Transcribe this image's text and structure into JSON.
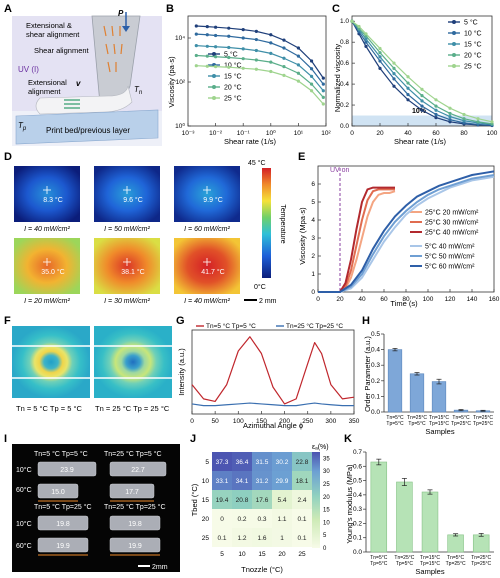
{
  "panel_letters": [
    "A",
    "B",
    "C",
    "D",
    "E",
    "F",
    "G",
    "H",
    "I",
    "J",
    "K"
  ],
  "panel_a": {
    "labels": {
      "P": "P",
      "ext_shear": "Extensional &",
      "ext_shear2": "shear alignment",
      "shear": "Shear alignment",
      "uv": "UV (I)",
      "v": "v",
      "ext": "Extensional",
      "ext2": "alignment",
      "tn": "T",
      "tn_sub": "n",
      "tp": "T",
      "tp_sub": "p",
      "bed": "Print bed/previous layer"
    }
  },
  "chart_data": [
    {
      "id": "B",
      "type": "line",
      "xlabel": "Shear rate (1/s)",
      "ylabel": "Viscosity (pa·s)",
      "xscale": "log",
      "yscale": "log",
      "xlim": [
        0.001,
        100
      ],
      "ylim": [
        1,
        100000
      ],
      "xticks": [
        "10⁻³",
        "10⁻²",
        "10⁻¹",
        "10⁰",
        "10¹",
        "10²"
      ],
      "yticks": [
        "10⁰",
        "10²",
        "10⁴"
      ],
      "series": [
        {
          "name": "5 °C",
          "color": "#1f3f7a",
          "x": [
            0.002,
            0.005,
            0.01,
            0.03,
            0.1,
            0.3,
            1,
            3,
            10,
            30,
            80
          ],
          "y": [
            35000,
            33000,
            31000,
            28000,
            24000,
            20000,
            14000,
            8000,
            3500,
            900,
            150
          ]
        },
        {
          "name": "10 °C",
          "color": "#2f6a9e",
          "x": [
            0.002,
            0.005,
            0.01,
            0.03,
            0.1,
            0.3,
            1,
            3,
            10,
            30,
            80
          ],
          "y": [
            15000,
            14000,
            13000,
            12000,
            10000,
            8500,
            6000,
            3500,
            1500,
            400,
            80
          ]
        },
        {
          "name": "15 °C",
          "color": "#3f8fa8",
          "x": [
            0.002,
            0.005,
            0.01,
            0.03,
            0.1,
            0.3,
            1,
            3,
            10,
            30,
            80
          ],
          "y": [
            4500,
            4200,
            4000,
            3700,
            3200,
            2700,
            2000,
            1200,
            600,
            180,
            40
          ]
        },
        {
          "name": "20 °C",
          "color": "#5aae8a",
          "x": [
            0.002,
            0.005,
            0.01,
            0.03,
            0.1,
            0.3,
            1,
            3,
            10,
            30,
            80
          ],
          "y": [
            1600,
            1500,
            1400,
            1300,
            1150,
            1000,
            800,
            500,
            250,
            80,
            20
          ]
        },
        {
          "name": "25 °C",
          "color": "#9fd48e",
          "x": [
            0.002,
            0.005,
            0.01,
            0.03,
            0.1,
            0.3,
            1,
            3,
            10,
            30,
            80
          ],
          "y": [
            550,
            520,
            500,
            470,
            420,
            380,
            300,
            200,
            110,
            40,
            10
          ]
        }
      ]
    },
    {
      "id": "C",
      "type": "line",
      "xlabel": "Shear rate (1/s)",
      "ylabel": "Normalized viscosity",
      "xlim": [
        0,
        100
      ],
      "ylim": [
        0,
        1.05
      ],
      "xticks": [
        0,
        20,
        40,
        60,
        80,
        100
      ],
      "yticks": [
        0.0,
        0.2,
        0.4,
        0.6,
        0.8,
        1.0
      ],
      "band_label": "10%",
      "series": [
        {
          "name": "5 °C",
          "color": "#1f3f7a",
          "x": [
            0,
            5,
            10,
            20,
            30,
            40,
            50,
            60,
            70,
            80,
            90,
            100
          ],
          "y": [
            1.0,
            0.88,
            0.76,
            0.55,
            0.38,
            0.25,
            0.15,
            0.08,
            0.04,
            0.02,
            0.01,
            0.005
          ]
        },
        {
          "name": "10 °C",
          "color": "#2f6a9e",
          "x": [
            0,
            5,
            10,
            20,
            30,
            40,
            50,
            60,
            70,
            80,
            90,
            100
          ],
          "y": [
            1.0,
            0.9,
            0.8,
            0.62,
            0.45,
            0.3,
            0.19,
            0.11,
            0.06,
            0.03,
            0.015,
            0.008
          ]
        },
        {
          "name": "15 °C",
          "color": "#3f8fa8",
          "x": [
            0,
            5,
            10,
            20,
            30,
            40,
            50,
            60,
            70,
            80,
            90,
            100
          ],
          "y": [
            1.0,
            0.92,
            0.83,
            0.66,
            0.5,
            0.36,
            0.24,
            0.15,
            0.09,
            0.05,
            0.03,
            0.015
          ]
        },
        {
          "name": "20 °C",
          "color": "#5aae8a",
          "x": [
            0,
            5,
            10,
            20,
            30,
            40,
            50,
            60,
            70,
            80,
            90,
            100
          ],
          "y": [
            1.0,
            0.93,
            0.86,
            0.7,
            0.55,
            0.41,
            0.29,
            0.19,
            0.12,
            0.07,
            0.04,
            0.02
          ]
        },
        {
          "name": "25 °C",
          "color": "#9fd48e",
          "x": [
            0,
            5,
            10,
            20,
            30,
            40,
            50,
            60,
            70,
            80,
            90,
            100
          ],
          "y": [
            1.0,
            0.95,
            0.88,
            0.74,
            0.6,
            0.47,
            0.35,
            0.25,
            0.17,
            0.11,
            0.07,
            0.04
          ]
        }
      ]
    },
    {
      "id": "D",
      "type": "heatmap",
      "colorbar_top": "45 °C",
      "colorbar_bottom": "0°C",
      "colorbar_label": "Temperature",
      "scale_bar": "2 mm",
      "tiles": [
        {
          "temp": "8.3 °C",
          "intensity": "I = 40 mW/cm²",
          "level": 0.18
        },
        {
          "temp": "9.6 °C",
          "intensity": "I = 50 mW/cm²",
          "level": 0.21
        },
        {
          "temp": "9.9 °C",
          "intensity": "I = 60 mW/cm²",
          "level": 0.22
        },
        {
          "temp": "35.0 °C",
          "intensity": "I = 20 mW/cm²",
          "level": 0.78
        },
        {
          "temp": "38.1 °C",
          "intensity": "I = 30 mW/cm²",
          "level": 0.85
        },
        {
          "temp": "41.7 °C",
          "intensity": "I = 40 mW/cm²",
          "level": 0.93
        }
      ]
    },
    {
      "id": "E",
      "type": "line",
      "xlabel": "Time (s)",
      "ylabel": "Viscosity (Mpa·s)",
      "xlim": [
        0,
        160
      ],
      "ylim": [
        0,
        7
      ],
      "xticks": [
        0,
        20,
        40,
        60,
        80,
        100,
        120,
        140,
        160
      ],
      "yticks": [
        0,
        1,
        2,
        3,
        4,
        5,
        6
      ],
      "annotation": "UV on",
      "uv_on_x": 20,
      "series": [
        {
          "name": "25°C 20 mW/cm²",
          "color": "#f4a582",
          "x": [
            0,
            20,
            25,
            30,
            35,
            40,
            45,
            50,
            55,
            60,
            65,
            70
          ],
          "y": [
            0,
            0,
            0.2,
            0.8,
            1.8,
            3.0,
            4.2,
            5.0,
            5.4,
            5.5,
            5.5,
            5.6
          ]
        },
        {
          "name": "25°C 30 mW/cm²",
          "color": "#e06c50",
          "x": [
            0,
            20,
            25,
            30,
            35,
            40,
            45,
            50,
            55,
            60,
            65,
            70
          ],
          "y": [
            0,
            0,
            0.3,
            1.2,
            2.6,
            4.0,
            5.1,
            5.6,
            5.7,
            5.7,
            5.7,
            5.7
          ]
        },
        {
          "name": "25°C 40 mW/cm²",
          "color": "#b2292e",
          "x": [
            0,
            20,
            25,
            30,
            35,
            40,
            45,
            50,
            55,
            60,
            65,
            70
          ],
          "y": [
            0,
            0,
            0.5,
            1.8,
            3.5,
            5.0,
            5.7,
            5.8,
            5.8,
            5.8,
            5.8,
            5.8
          ]
        },
        {
          "name": "5°C 40 mW/cm²",
          "color": "#a9c6e8",
          "x": [
            0,
            20,
            30,
            40,
            50,
            60,
            70,
            80,
            90,
            100,
            110,
            120,
            130,
            140,
            150,
            160
          ],
          "y": [
            0,
            0,
            0.2,
            0.8,
            1.8,
            2.8,
            3.6,
            4.3,
            4.8,
            5.2,
            5.5,
            5.8,
            6.0,
            6.2,
            6.3,
            6.4
          ]
        },
        {
          "name": "5°C 50 mW/cm²",
          "color": "#6f9fd3",
          "x": [
            0,
            20,
            30,
            40,
            50,
            60,
            70,
            80,
            90,
            100,
            110,
            120,
            130,
            140,
            150,
            160
          ],
          "y": [
            0,
            0,
            0.3,
            1.0,
            2.1,
            3.1,
            3.9,
            4.5,
            5.0,
            5.4,
            5.7,
            5.9,
            6.1,
            6.3,
            6.4,
            6.5
          ]
        },
        {
          "name": "5°C 60 mW/cm²",
          "color": "#2e5fa8",
          "x": [
            0,
            20,
            30,
            40,
            50,
            60,
            70,
            80,
            90,
            100,
            110,
            120,
            130,
            140,
            150,
            160
          ],
          "y": [
            0,
            0,
            0.4,
            1.2,
            2.4,
            3.4,
            4.2,
            4.8,
            5.3,
            5.6,
            5.9,
            6.1,
            6.3,
            6.5,
            6.6,
            6.7
          ]
        }
      ]
    },
    {
      "id": "F",
      "type": "image",
      "captions": [
        "Tn = 5 °C Tp = 5 °C",
        "Tn = 25 °C Tp = 25 °C"
      ]
    },
    {
      "id": "G",
      "type": "line",
      "xlabel": "Azimuthal Angle ϕ",
      "ylabel": "Intensity (a.u.)",
      "xlim": [
        0,
        350
      ],
      "xticks": [
        0,
        50,
        100,
        150,
        200,
        250,
        300,
        350
      ],
      "series": [
        {
          "name": "Tn=5 °C Tp=5 °C",
          "color": "#c0272d",
          "x": [
            0,
            25,
            50,
            75,
            100,
            125,
            150,
            175,
            200,
            225,
            250,
            265,
            280,
            300,
            325,
            350
          ],
          "y": [
            0.35,
            0.18,
            0.15,
            0.35,
            0.75,
            0.92,
            0.72,
            0.32,
            0.12,
            0.18,
            0.6,
            0.85,
            0.72,
            0.35,
            0.18,
            0.2
          ]
        },
        {
          "name": "Tn=25 °C Tp=25 °C",
          "color": "#3a6fb0",
          "x": [
            0,
            25,
            50,
            75,
            100,
            125,
            150,
            175,
            200,
            225,
            250,
            265,
            280,
            300,
            325,
            350
          ],
          "y": [
            0.12,
            0.1,
            0.1,
            0.11,
            0.12,
            0.13,
            0.12,
            0.11,
            0.1,
            0.1,
            0.12,
            0.13,
            0.12,
            0.11,
            0.1,
            0.1
          ]
        }
      ]
    },
    {
      "id": "H",
      "type": "bar",
      "xlabel": "Samples",
      "ylabel": "Order Parameter (a.u.)",
      "ylim": [
        0,
        0.5
      ],
      "yticks": [
        0.0,
        0.1,
        0.2,
        0.3,
        0.4,
        0.5
      ],
      "categories": [
        "Tn=5°C Tp=5°C",
        "Tn=25°C Tp=5°C",
        "Tn=15°C Tp=15°C",
        "Tn=5°C Tp=25°C",
        "Tn=25°C Tp=25°C"
      ],
      "values": [
        0.4,
        0.245,
        0.195,
        0.012,
        0.008
      ],
      "errors": [
        0.008,
        0.008,
        0.015,
        0.004,
        0.003
      ]
    },
    {
      "id": "I",
      "type": "image",
      "row_labels": [
        "10°C",
        "60°C",
        "10°C",
        "60°C"
      ],
      "headers": [
        "Tn=5 °C Tp=5 °C",
        "Tn=25 °C Tp=5 °C",
        "Tn=5 °C Tp=25 °C",
        "Tn=25 °C Tp=25 °C"
      ],
      "lengths": [
        "23.9",
        "15.0",
        "22.7",
        "17.7",
        "19.8",
        "19.9",
        "19.8",
        "19.9"
      ],
      "scale_bar": "2mm"
    },
    {
      "id": "J",
      "type": "heatmap",
      "xlabel": "Tnozzle (°C)",
      "ylabel": "Tbed (°C)",
      "x": [
        5,
        10,
        15,
        20,
        25
      ],
      "y": [
        5,
        10,
        15,
        20,
        25
      ],
      "values": [
        [
          37.3,
          36.4,
          31.5,
          30.2,
          22.8
        ],
        [
          33.1,
          34.1,
          31.2,
          29.9,
          18.1
        ],
        [
          19.4,
          20.8,
          17.6,
          5.4,
          2.4
        ],
        [
          0,
          0.2,
          0.3,
          1.1,
          0.1
        ],
        [
          0.1,
          1.2,
          1.6,
          1,
          0.1
        ]
      ],
      "colorbar_label": "εₐ(%)",
      "colorbar_ticks": [
        0,
        5,
        10,
        15,
        20,
        25,
        30,
        35
      ],
      "vmax": 37.5
    },
    {
      "id": "K",
      "type": "bar",
      "xlabel": "Samples",
      "ylabel": "Young's modulus (MPa)",
      "ylim": [
        0,
        0.7
      ],
      "yticks": [
        0.0,
        0.1,
        0.2,
        0.3,
        0.4,
        0.5,
        0.6,
        0.7
      ],
      "categories": [
        "Tn=5°C Tp=5°C",
        "Tn=25°C Tp=5°C",
        "Tn=15°C Tp=15°C",
        "Tn=5°C Tp=25°C",
        "Tn=25°C Tp=25°C"
      ],
      "values": [
        0.63,
        0.49,
        0.42,
        0.12,
        0.12
      ],
      "errors": [
        0.02,
        0.025,
        0.015,
        0.008,
        0.01
      ]
    }
  ]
}
